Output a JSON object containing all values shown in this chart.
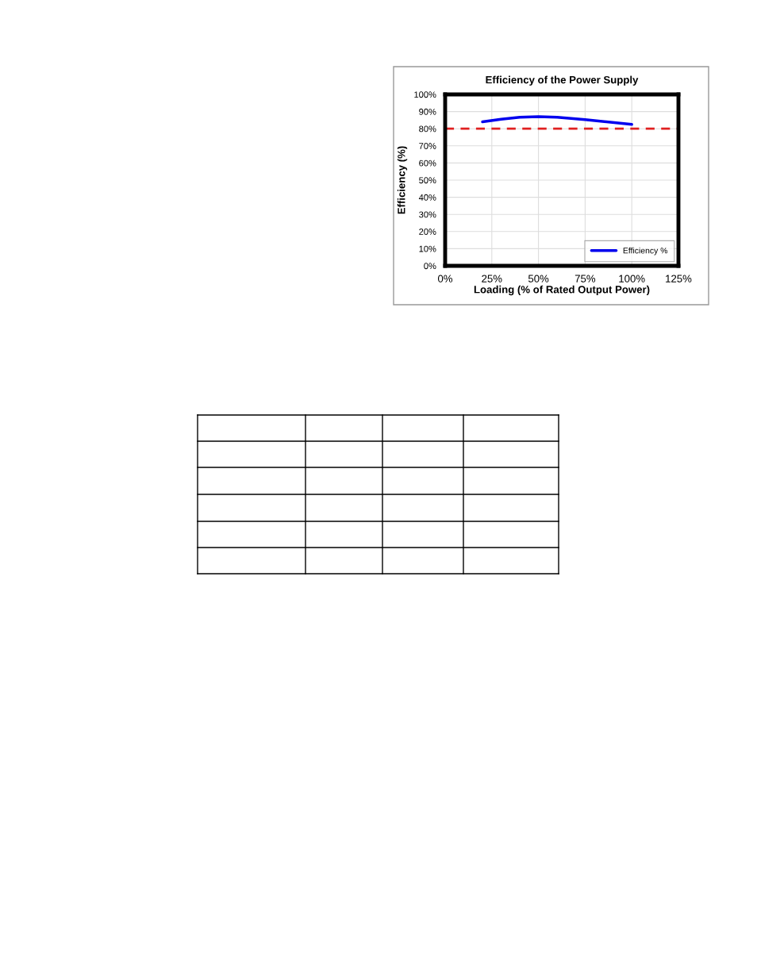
{
  "chart_data": {
    "type": "line",
    "title": "Efficiency of the Power Supply",
    "xlabel": "Loading (% of Rated Output Power)",
    "ylabel": "Efficiency (%)",
    "x": [
      20,
      30,
      40,
      50,
      60,
      75,
      100
    ],
    "series": [
      {
        "name": "Efficiency %",
        "color": "#0000ee",
        "values": [
          84,
          85.5,
          86.7,
          87,
          86.7,
          85.3,
          82.5
        ]
      }
    ],
    "xlim": [
      0,
      125
    ],
    "xticks": [
      {
        "value": 0,
        "label": "0%"
      },
      {
        "value": 25,
        "label": "25%"
      },
      {
        "value": 50,
        "label": "50%"
      },
      {
        "value": 75,
        "label": "75%"
      },
      {
        "value": 100,
        "label": "100%"
      },
      {
        "value": 125,
        "label": "125%"
      }
    ],
    "ylim": [
      0,
      100
    ],
    "yticks": [
      {
        "value": 0,
        "label": "0%"
      },
      {
        "value": 10,
        "label": "10%"
      },
      {
        "value": 20,
        "label": "20%"
      },
      {
        "value": 30,
        "label": "30%"
      },
      {
        "value": 40,
        "label": "40%"
      },
      {
        "value": 50,
        "label": "50%"
      },
      {
        "value": 60,
        "label": "60%"
      },
      {
        "value": 70,
        "label": "70%"
      },
      {
        "value": 80,
        "label": "80%"
      },
      {
        "value": 90,
        "label": "90%"
      },
      {
        "value": 100,
        "label": "100%"
      }
    ],
    "ref_lines": [
      {
        "axis": "y",
        "value": 80,
        "color": "#e02020",
        "line_style": "dashed"
      }
    ],
    "grid": true,
    "legend": "bottom right",
    "marker": "none",
    "line_style": "solid"
  }
}
